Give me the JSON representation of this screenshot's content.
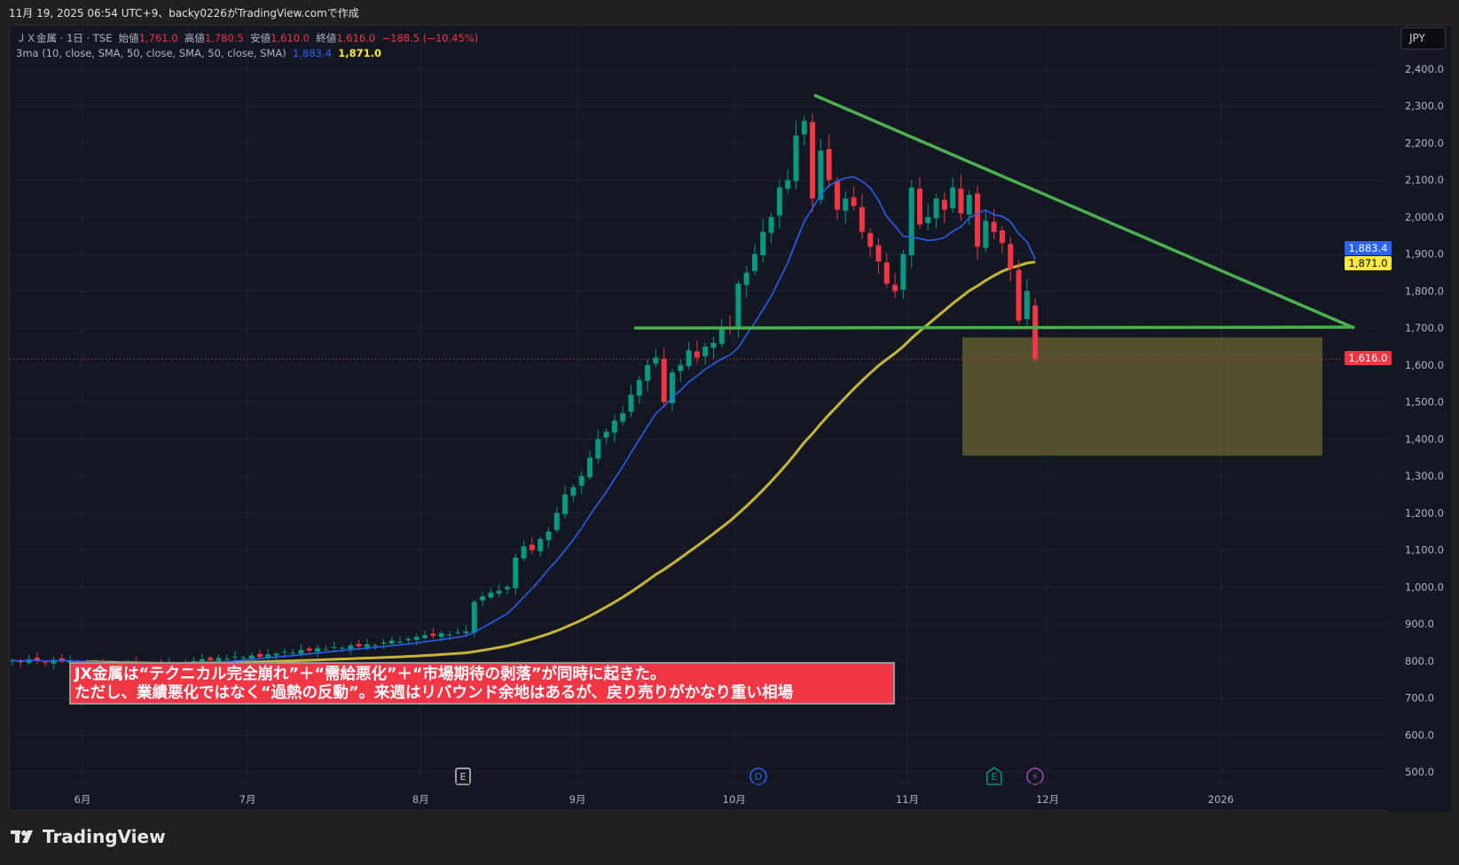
{
  "header": {
    "created_line": "11月 19, 2025 06:54 UTC+9、backy0226がTradingView.comで作成"
  },
  "legend": {
    "symbol": "ＪＸ金属 · 1日 · TSE",
    "open_label": "始値",
    "open": "1,761.0",
    "high_label": "高値",
    "high": "1,780.5",
    "low_label": "安値",
    "low": "1,610.0",
    "close_label": "終値",
    "close": "1,616.0",
    "change": "−188.5 (−10.45%)",
    "indicator": "3ma (10, close, SMA, 50, close, SMA, 50, close, SMA)",
    "ma_fast": "1,883.4",
    "ma_slow": "1,871.0"
  },
  "currency_button": "JPY",
  "price_labels": {
    "ma_fast": "1,883.4",
    "ma_slow": "1,871.0",
    "last": "1,616.0"
  },
  "annotation": {
    "line1": "JX金属は“テクニカル完全崩れ”＋“需給悪化”＋“市場期待の剥落”が同時に起きた。",
    "line2": "ただし、業績悪化ではなく“過熱の反動”。来週はリバウンド余地はあるが、戻り売りがかなり重い相場"
  },
  "events": [
    {
      "icon": "earnings-icon",
      "glyph": "E"
    },
    {
      "icon": "dividend-icon",
      "glyph": "D"
    },
    {
      "icon": "earnings-upcoming-icon",
      "glyph": "E"
    },
    {
      "icon": "lightning-icon",
      "glyph": "⚡"
    }
  ],
  "footer": {
    "brand": "TradingView"
  },
  "colors": {
    "up": "#089981",
    "down": "#f23645",
    "ma_fast": "#2962ff",
    "ma_slow": "#c8b536",
    "trend": "#4caf50",
    "box": "#6b6430"
  },
  "chart_data": {
    "type": "candlestick",
    "title": "ＪＸ金属 · 1日 · TSE",
    "ylim": [
      450,
      2450
    ],
    "y_ticks": [
      "2,400.0",
      "2,300.0",
      "2,200.0",
      "2,100.0",
      "2,000.0",
      "1,900.0",
      "1,800.0",
      "1,700.0",
      "1,600.0",
      "1,500.0",
      "1,400.0",
      "1,300.0",
      "1,200.0",
      "1,100.0",
      "1,000.0",
      "900.0",
      "800.0",
      "700.0",
      "600.0",
      "500.0"
    ],
    "y_tick_values": [
      2400,
      2300,
      2200,
      2100,
      2000,
      1900,
      1800,
      1700,
      1600,
      1500,
      1400,
      1300,
      1200,
      1100,
      1000,
      900,
      800,
      700,
      600,
      500
    ],
    "x_ticks": [
      "6月",
      "7月",
      "8月",
      "9月",
      "10月",
      "11月",
      "12月",
      "2026"
    ],
    "x_tick_index": [
      8.5,
      28.5,
      49.5,
      68.5,
      87.5,
      108.5,
      125.5,
      146.5
    ],
    "closes": [
      802,
      798,
      805,
      800,
      796,
      803,
      799,
      801,
      792,
      788,
      795,
      785,
      790,
      786,
      793,
      789,
      784,
      791,
      787,
      795,
      790,
      797,
      800,
      805,
      802,
      808,
      806,
      812,
      810,
      815,
      811,
      818,
      820,
      825,
      822,
      830,
      828,
      835,
      832,
      838,
      836,
      842,
      840,
      845,
      843,
      850,
      855,
      852,
      860,
      865,
      870,
      868,
      875,
      872,
      878,
      880,
      960,
      975,
      985,
      990,
      1000,
      1080,
      1110,
      1100,
      1130,
      1150,
      1200,
      1250,
      1270,
      1300,
      1350,
      1400,
      1420,
      1450,
      1470,
      1520,
      1560,
      1600,
      1620,
      1500,
      1580,
      1600,
      1640,
      1620,
      1650,
      1660,
      1700,
      1700,
      1820,
      1850,
      1900,
      1960,
      2000,
      2080,
      2100,
      2220,
      2260,
      2050,
      2180,
      2100,
      2020,
      2050,
      2030,
      1960,
      1920,
      1880,
      1820,
      1800,
      1900,
      2080,
      1980,
      2000,
      2050,
      2020,
      2080,
      2010,
      2060,
      1920,
      1990,
      1960,
      1930,
      1860,
      1720,
      1800
    ],
    "last_candle": {
      "open": 1761.0,
      "high": 1780.5,
      "low": 1610.0,
      "close": 1616.0
    },
    "last_price": 1616.0,
    "series": [
      {
        "name": "SMA 10",
        "period": 10,
        "last": 1883.4
      },
      {
        "name": "SMA 50",
        "period": 50,
        "last": 1871.0
      }
    ],
    "drawings": {
      "descending_trendline": {
        "from_price": 2330,
        "to_price": 1700
      },
      "horizontal_line_price": 1700,
      "target_box_price_range": [
        1355,
        1675
      ]
    },
    "grid": true
  }
}
